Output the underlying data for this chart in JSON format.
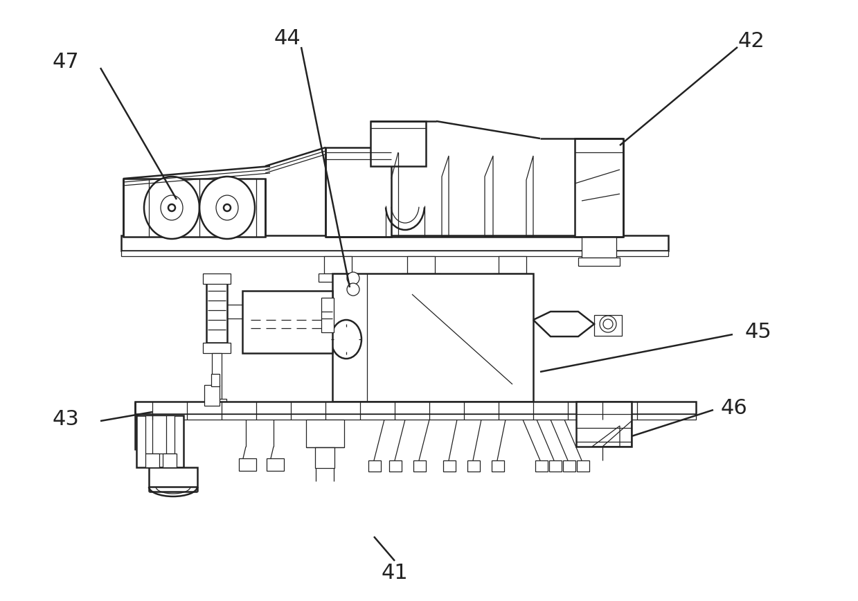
{
  "bg_color": "#ffffff",
  "line_color": "#222222",
  "lw_main": 1.8,
  "lw_thin": 0.9,
  "lw_label": 1.4,
  "label_fontsize": 22
}
